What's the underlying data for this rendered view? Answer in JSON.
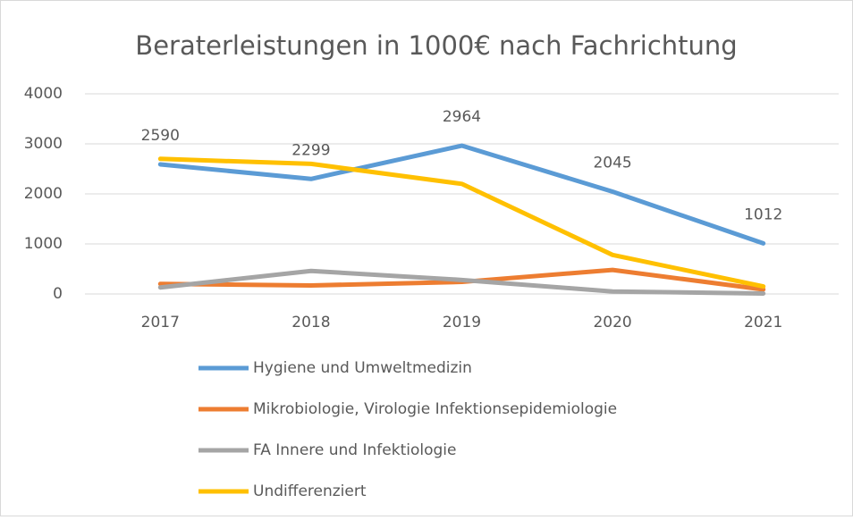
{
  "chart_data": {
    "type": "line",
    "title": "Beraterleistungen in 1000€ nach Fachrichtung",
    "categories": [
      "2017",
      "2018",
      "2019",
      "2020",
      "2021"
    ],
    "series": [
      {
        "name": "Hygiene und Umweltmedizin",
        "color": "#5b9bd5",
        "values": [
          2590,
          2299,
          2964,
          2045,
          1012
        ],
        "show_values": true
      },
      {
        "name": "Mikrobiologie, Virologie Infektionsepidemiologie",
        "color": "#ed7d31",
        "values": [
          200,
          170,
          240,
          480,
          90
        ],
        "show_values": false
      },
      {
        "name": "FA Innere und Infektiologie",
        "color": "#a5a5a5",
        "values": [
          130,
          460,
          280,
          50,
          10
        ],
        "show_values": false
      },
      {
        "name": "Undifferenziert",
        "color": "#ffc000",
        "values": [
          2700,
          2600,
          2200,
          780,
          150
        ],
        "show_values": false
      }
    ],
    "ylim": [
      0,
      4000
    ],
    "yticks": [
      0,
      1000,
      2000,
      3000,
      4000
    ],
    "grid": true,
    "legend": "bottom"
  }
}
